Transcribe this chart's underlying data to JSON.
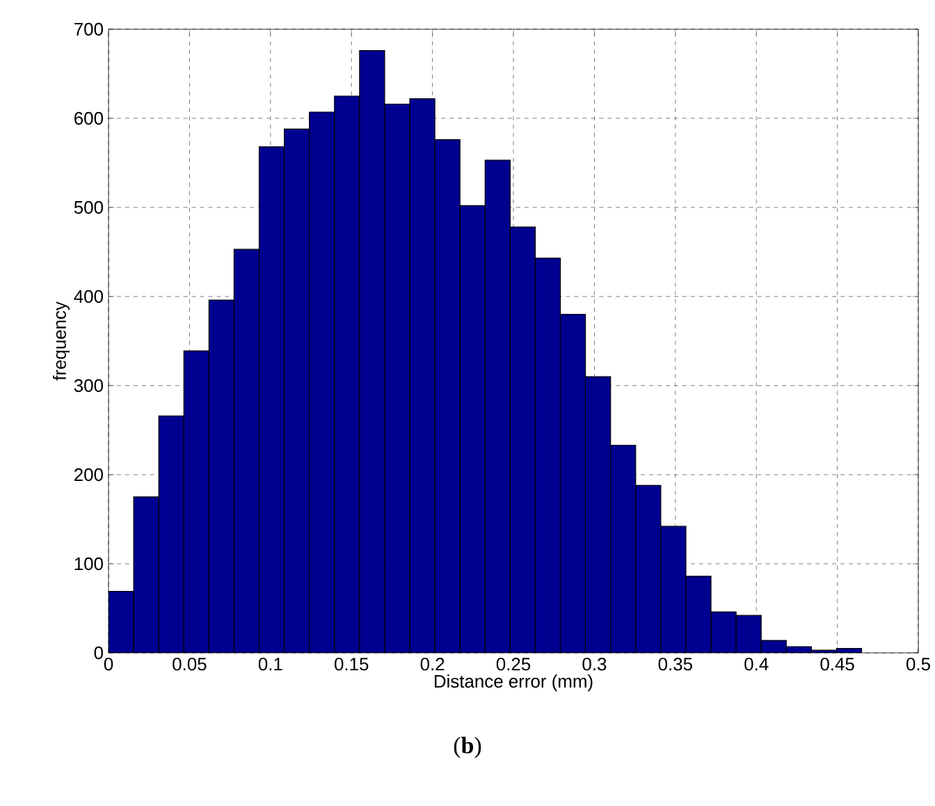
{
  "chart_data": {
    "type": "histogram",
    "xlabel": "Distance error (mm)",
    "ylabel": "frequency",
    "annotations": [
      "(**b**)"
    ],
    "bins": [
      0,
      0.0155,
      0.031,
      0.0465,
      0.062,
      0.0775,
      0.093,
      0.1085,
      0.124,
      0.1395,
      0.155,
      0.1705,
      0.186,
      0.2015,
      0.217,
      0.2325,
      0.248,
      0.2635,
      0.279,
      0.2945,
      0.31,
      0.3255,
      0.341,
      0.3565,
      0.372,
      0.3875,
      0.403,
      0.4185,
      0.434,
      0.4495,
      0.465
    ],
    "values": [
      69,
      175,
      266,
      339,
      396,
      453,
      568,
      588,
      607,
      625,
      676,
      616,
      622,
      576,
      502,
      553,
      478,
      443,
      380,
      310,
      233,
      188,
      142,
      86,
      46,
      42,
      14,
      7,
      3,
      5
    ],
    "color": "#000090",
    "xlim": [
      0,
      0.5
    ],
    "ylim": [
      0,
      700
    ],
    "xticks": [
      0,
      0.05,
      0.1,
      0.15,
      0.2,
      0.25,
      0.3,
      0.35,
      0.4,
      0.45,
      0.5
    ],
    "yticks": [
      0,
      100,
      200,
      300,
      400,
      500,
      600,
      700
    ],
    "grid": true
  }
}
